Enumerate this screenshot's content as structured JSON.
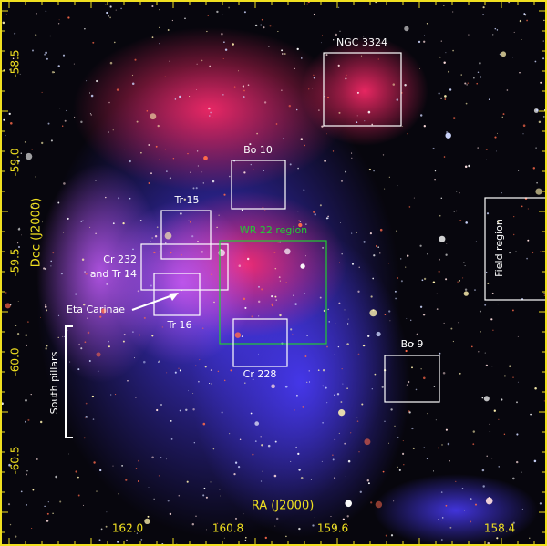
{
  "axes": {
    "x_title": "RA (J2000)",
    "y_title": "Dec (J2000)",
    "x_ticks": [
      "162.0",
      "160.8",
      "159.6",
      "158.4"
    ],
    "y_ticks": [
      "-58.5",
      "-59.0",
      "-59.5",
      "-60.0",
      "-60.5"
    ]
  },
  "regions": [
    {
      "label": "NGC 3324"
    },
    {
      "label": "Bo 10"
    },
    {
      "label": "Tr 15"
    },
    {
      "label": [
        "Cr 232",
        "and Tr 14"
      ]
    },
    {
      "label": "Tr 16"
    },
    {
      "label": "WR 22 region"
    },
    {
      "label": "Cr 228"
    },
    {
      "label": "Bo 9"
    },
    {
      "label": "Field region"
    }
  ],
  "annotations": {
    "eta_carinae": "Eta Carinae",
    "south_pillars": "South pillars"
  }
}
